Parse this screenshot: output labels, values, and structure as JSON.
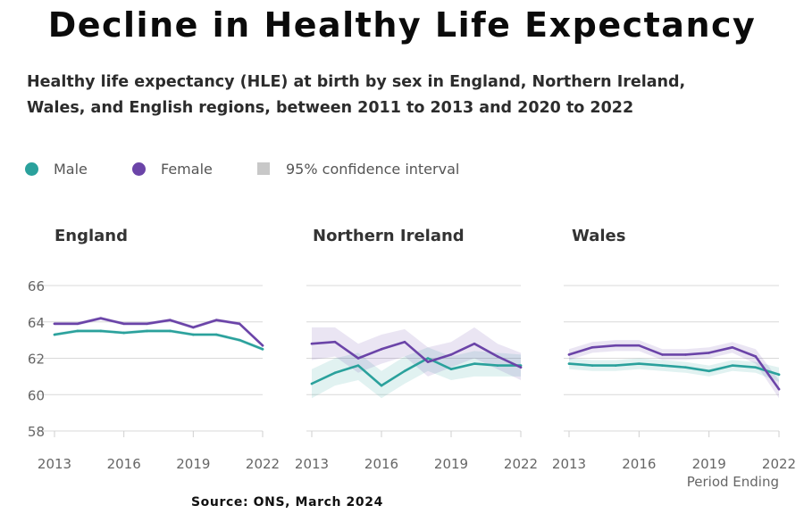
{
  "title": "Decline in Healthy Life Expectancy",
  "subtitle_line1": "Healthy life expectancy (HLE) at birth by sex in England, Northern Ireland,",
  "subtitle_line2": "Wales, and English regions, between 2011 to 2013 and 2020 to 2022",
  "legend": [
    {
      "label": "Male",
      "color": "#2aa19c",
      "shape": "circle"
    },
    {
      "label": "Female",
      "color": "#6b44a8",
      "shape": "circle"
    },
    {
      "label": "95% confidence interval",
      "color": "#c8c8c8",
      "shape": "square"
    }
  ],
  "source": "Source: ONS, March 2024",
  "chart_data": {
    "type": "line",
    "xlabel": "Period Ending",
    "ylabel": "",
    "ylim": [
      58,
      66
    ],
    "yticks": [
      58,
      60,
      62,
      64,
      66
    ],
    "x": [
      2013,
      2014,
      2015,
      2016,
      2017,
      2018,
      2019,
      2020,
      2021,
      2022
    ],
    "xticks": [
      2013,
      2016,
      2019,
      2022
    ],
    "panels": [
      {
        "title": "England",
        "series": [
          {
            "name": "Male",
            "color": "#2aa19c",
            "values": [
              63.3,
              63.5,
              63.5,
              63.4,
              63.5,
              63.5,
              63.3,
              63.3,
              63.0,
              62.5
            ],
            "ci_lower": [
              63.2,
              63.4,
              63.4,
              63.3,
              63.4,
              63.4,
              63.2,
              63.2,
              62.9,
              62.4
            ],
            "ci_upper": [
              63.4,
              63.6,
              63.6,
              63.5,
              63.6,
              63.6,
              63.4,
              63.4,
              63.1,
              62.6
            ]
          },
          {
            "name": "Female",
            "color": "#6b44a8",
            "values": [
              63.9,
              63.9,
              64.2,
              63.9,
              63.9,
              64.1,
              63.7,
              64.1,
              63.9,
              62.7
            ],
            "ci_lower": [
              63.8,
              63.8,
              64.1,
              63.8,
              63.8,
              64.0,
              63.6,
              64.0,
              63.8,
              62.6
            ],
            "ci_upper": [
              64.0,
              64.0,
              64.3,
              64.0,
              64.0,
              64.2,
              63.8,
              64.2,
              64.0,
              62.8
            ]
          }
        ]
      },
      {
        "title": "Northern Ireland",
        "series": [
          {
            "name": "Male",
            "color": "#2aa19c",
            "values": [
              60.6,
              61.2,
              61.6,
              60.5,
              61.3,
              62.0,
              61.4,
              61.7,
              61.6,
              61.6
            ],
            "ci_lower": [
              59.8,
              60.5,
              60.8,
              59.8,
              60.6,
              61.3,
              60.8,
              61.0,
              61.0,
              61.0
            ],
            "ci_upper": [
              61.4,
              62.0,
              62.3,
              61.3,
              62.1,
              62.6,
              62.1,
              62.4,
              62.3,
              62.2
            ]
          },
          {
            "name": "Female",
            "color": "#6b44a8",
            "values": [
              62.8,
              62.9,
              62.0,
              62.5,
              62.9,
              61.8,
              62.2,
              62.8,
              62.1,
              61.5
            ],
            "ci_lower": [
              61.9,
              62.1,
              61.2,
              61.7,
              62.1,
              61.0,
              61.5,
              62.0,
              61.4,
              60.8
            ],
            "ci_upper": [
              63.7,
              63.7,
              62.8,
              63.3,
              63.6,
              62.6,
              62.9,
              63.7,
              62.8,
              62.3
            ]
          }
        ]
      },
      {
        "title": "Wales",
        "series": [
          {
            "name": "Male",
            "color": "#2aa19c",
            "values": [
              61.7,
              61.6,
              61.6,
              61.7,
              61.6,
              61.5,
              61.3,
              61.6,
              61.5,
              61.1
            ],
            "ci_lower": [
              61.4,
              61.3,
              61.3,
              61.4,
              61.3,
              61.2,
              61.0,
              61.3,
              61.2,
              60.7
            ],
            "ci_upper": [
              62.0,
              61.9,
              61.9,
              62.0,
              61.9,
              61.8,
              61.6,
              61.9,
              61.8,
              61.5
            ]
          },
          {
            "name": "Female",
            "color": "#6b44a8",
            "values": [
              62.2,
              62.6,
              62.7,
              62.7,
              62.2,
              62.2,
              62.3,
              62.6,
              62.1,
              60.3
            ],
            "ci_lower": [
              61.9,
              62.3,
              62.4,
              62.4,
              61.9,
              61.9,
              62.0,
              62.3,
              61.7,
              59.8
            ],
            "ci_upper": [
              62.5,
              62.9,
              63.0,
              63.0,
              62.5,
              62.5,
              62.6,
              62.9,
              62.5,
              60.8
            ]
          }
        ]
      }
    ]
  }
}
